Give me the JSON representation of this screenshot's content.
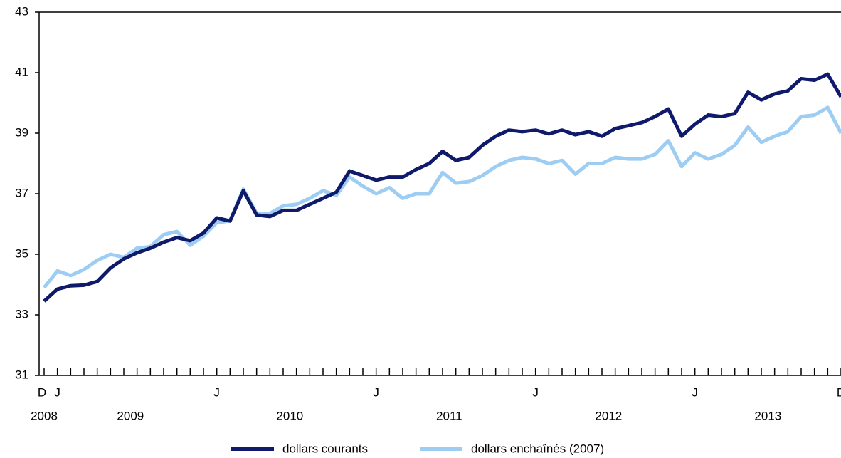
{
  "chart_data": {
    "type": "line",
    "categories": [
      "D",
      "J",
      null,
      null,
      null,
      null,
      null,
      null,
      null,
      null,
      null,
      null,
      null,
      "J",
      null,
      null,
      null,
      null,
      null,
      null,
      null,
      null,
      null,
      null,
      null,
      "J",
      null,
      null,
      null,
      null,
      null,
      null,
      null,
      null,
      null,
      null,
      null,
      "J",
      null,
      null,
      null,
      null,
      null,
      null,
      null,
      null,
      null,
      null,
      null,
      "J",
      null,
      null,
      null,
      null,
      null,
      null,
      null,
      null,
      null,
      null,
      "D"
    ],
    "years": [
      "2008",
      "2009",
      "2010",
      "2011",
      "2012",
      "2013"
    ],
    "series": [
      {
        "name": "dollars courants",
        "color": "#0f1a6b",
        "values": [
          33.45,
          33.85,
          33.96,
          33.98,
          34.1,
          34.55,
          34.85,
          35.05,
          35.2,
          35.4,
          35.55,
          35.45,
          35.7,
          36.2,
          36.1,
          37.1,
          36.3,
          36.25,
          36.45,
          36.45,
          36.65,
          36.85,
          37.05,
          37.75,
          37.6,
          37.45,
          37.55,
          37.55,
          37.8,
          38.0,
          38.4,
          38.1,
          38.2,
          38.6,
          38.9,
          39.1,
          39.05,
          39.1,
          38.98,
          39.1,
          38.95,
          39.05,
          38.9,
          39.15,
          39.25,
          39.35,
          39.55,
          39.8,
          38.9,
          39.3,
          39.6,
          39.55,
          39.65,
          40.35,
          40.1,
          40.3,
          40.4,
          40.8,
          40.75,
          40.95,
          40.2
        ]
      },
      {
        "name": "dollars enchaînés (2007)",
        "color": "#9dcdf2",
        "values": [
          33.9,
          34.45,
          34.3,
          34.5,
          34.8,
          35.0,
          34.9,
          35.2,
          35.25,
          35.65,
          35.75,
          35.3,
          35.6,
          36.05,
          36.1,
          37.15,
          36.35,
          36.35,
          36.6,
          36.65,
          36.85,
          37.1,
          36.95,
          37.55,
          37.25,
          37.0,
          37.2,
          36.85,
          37.0,
          37.0,
          37.7,
          37.35,
          37.4,
          37.6,
          37.9,
          38.1,
          38.2,
          38.15,
          38.0,
          38.1,
          37.65,
          38.0,
          38.0,
          38.2,
          38.15,
          38.15,
          38.3,
          38.75,
          37.9,
          38.35,
          38.15,
          38.3,
          38.6,
          39.2,
          38.7,
          38.9,
          39.05,
          39.55,
          39.6,
          39.85,
          39.0
        ]
      }
    ],
    "ylim": [
      31,
      43
    ],
    "yticks": [
      31,
      33,
      35,
      37,
      39,
      41,
      43
    ],
    "grid": false
  }
}
